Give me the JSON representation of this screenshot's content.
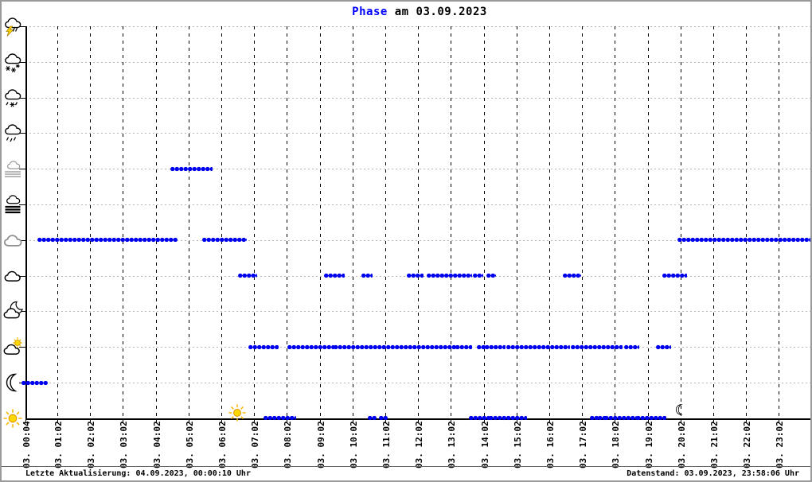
{
  "title": {
    "highlight": "Phase",
    "rest": " am 03.09.2023",
    "highlight_color": "#0000ff"
  },
  "status_bar": {
    "left": "Letzte Aktualisierung: 04.09.2023, 00:00:10 Uhr",
    "right": "Datenstand: 03.09.2023, 23:58:06 Uhr"
  },
  "chart_data": {
    "type": "scatter",
    "title": "Phase am 03.09.2023",
    "xlabel": "",
    "ylabel": "",
    "x_range": [
      "00:00",
      "24:00"
    ],
    "grid": {
      "horizontal": "dotted light gray",
      "vertical": "dashed black"
    },
    "dot_color": "#0000f0",
    "rows": [
      {
        "phase": "thunderstorm",
        "icon": "thunderstorm-icon"
      },
      {
        "phase": "snow",
        "icon": "snow-icon"
      },
      {
        "phase": "sleet",
        "icon": "sleet-icon"
      },
      {
        "phase": "rain",
        "icon": "rain-icon"
      },
      {
        "phase": "mist",
        "icon": "mist-icon"
      },
      {
        "phase": "fog",
        "icon": "fog-icon"
      },
      {
        "phase": "overcast",
        "icon": "overcast-icon"
      },
      {
        "phase": "cloudy",
        "icon": "cloudy-icon"
      },
      {
        "phase": "night-cloudy",
        "icon": "night-cloudy-icon"
      },
      {
        "phase": "day-cloudy",
        "icon": "day-cloudy-icon"
      },
      {
        "phase": "clear-night",
        "icon": "clear-night-icon"
      },
      {
        "phase": "sunny",
        "icon": "sunny-icon"
      }
    ],
    "x_ticks": [
      {
        "label": "03. 00:04",
        "time": "00:04"
      },
      {
        "label": "03. 01:02",
        "time": "01:02"
      },
      {
        "label": "03. 02:02",
        "time": "02:02"
      },
      {
        "label": "03. 03:02",
        "time": "03:02"
      },
      {
        "label": "03. 04:02",
        "time": "04:02"
      },
      {
        "label": "03. 05:02",
        "time": "05:02"
      },
      {
        "label": "03. 06:02",
        "time": "06:02"
      },
      {
        "label": "03. 07:02",
        "time": "07:02"
      },
      {
        "label": "03. 08:02",
        "time": "08:02"
      },
      {
        "label": "03. 09:02",
        "time": "09:02"
      },
      {
        "label": "03. 10:02",
        "time": "10:02"
      },
      {
        "label": "03. 11:02",
        "time": "11:02"
      },
      {
        "label": "03. 12:02",
        "time": "12:02"
      },
      {
        "label": "03. 13:02",
        "time": "13:02"
      },
      {
        "label": "03. 14:02",
        "time": "14:02"
      },
      {
        "label": "03. 15:02",
        "time": "15:02"
      },
      {
        "label": "03. 16:02",
        "time": "16:02"
      },
      {
        "label": "03. 17:02",
        "time": "17:02"
      },
      {
        "label": "03. 18:02",
        "time": "18:02"
      },
      {
        "label": "03. 19:02",
        "time": "19:02"
      },
      {
        "label": "03. 20:02",
        "time": "20:02"
      },
      {
        "label": "03. 21:02",
        "time": "21:02"
      },
      {
        "label": "03. 22:02",
        "time": "22:02"
      },
      {
        "label": "03. 23:02",
        "time": "23:02"
      }
    ],
    "segments": [
      {
        "phase": "clear-night",
        "from": "00:00",
        "to": "00:40"
      },
      {
        "phase": "overcast",
        "from": "00:30",
        "to": "04:38"
      },
      {
        "phase": "overcast",
        "from": "05:31",
        "to": "06:44"
      },
      {
        "phase": "overcast",
        "from": "20:01",
        "to": "24:00"
      },
      {
        "phase": "mist",
        "from": "04:33",
        "to": "05:41"
      },
      {
        "phase": "cloudy",
        "from": "06:37",
        "to": "07:03"
      },
      {
        "phase": "cloudy",
        "from": "09:14",
        "to": "09:43"
      },
      {
        "phase": "cloudy",
        "from": "10:23",
        "to": "10:34"
      },
      {
        "phase": "cloudy",
        "from": "11:46",
        "to": "12:08"
      },
      {
        "phase": "cloudy",
        "from": "12:22",
        "to": "13:03"
      },
      {
        "phase": "cloudy",
        "from": "13:10",
        "to": "13:37"
      },
      {
        "phase": "cloudy",
        "from": "13:47",
        "to": "13:57"
      },
      {
        "phase": "cloudy",
        "from": "14:11",
        "to": "14:20"
      },
      {
        "phase": "cloudy",
        "from": "16:31",
        "to": "16:56"
      },
      {
        "phase": "cloudy",
        "from": "19:33",
        "to": "20:10"
      },
      {
        "phase": "day-cloudy",
        "from": "06:56",
        "to": "07:43"
      },
      {
        "phase": "day-cloudy",
        "from": "08:07",
        "to": "09:25"
      },
      {
        "phase": "day-cloudy",
        "from": "09:32",
        "to": "13:10"
      },
      {
        "phase": "day-cloudy",
        "from": "13:15",
        "to": "13:37"
      },
      {
        "phase": "day-cloudy",
        "from": "13:54",
        "to": "14:04"
      },
      {
        "phase": "day-cloudy",
        "from": "14:08",
        "to": "14:38"
      },
      {
        "phase": "day-cloudy",
        "from": "14:48",
        "to": "14:57"
      },
      {
        "phase": "day-cloudy",
        "from": "15:04",
        "to": "16:36"
      },
      {
        "phase": "day-cloudy",
        "from": "16:46",
        "to": "18:12"
      },
      {
        "phase": "day-cloudy",
        "from": "18:23",
        "to": "18:42"
      },
      {
        "phase": "day-cloudy",
        "from": "19:21",
        "to": "19:41"
      },
      {
        "phase": "sunny",
        "from": "07:24",
        "to": "08:15"
      },
      {
        "phase": "sunny",
        "from": "10:34",
        "to": "10:41"
      },
      {
        "phase": "sunny",
        "from": "10:55",
        "to": "11:02"
      },
      {
        "phase": "sunny",
        "from": "13:39",
        "to": "14:08"
      },
      {
        "phase": "sunny",
        "from": "14:16",
        "to": "14:45"
      },
      {
        "phase": "sunny",
        "from": "14:48",
        "to": "15:17"
      },
      {
        "phase": "sunny",
        "from": "17:21",
        "to": "17:28"
      },
      {
        "phase": "sunny",
        "from": "17:35",
        "to": "17:43"
      },
      {
        "phase": "sunny",
        "from": "17:47",
        "to": "18:38"
      },
      {
        "phase": "sunny",
        "from": "18:45",
        "to": "19:32"
      }
    ],
    "markers": [
      {
        "icon": "sunrise-sun-icon",
        "time": "06:31"
      },
      {
        "icon": "sunset-moon-icon",
        "time": "20:00"
      }
    ]
  }
}
